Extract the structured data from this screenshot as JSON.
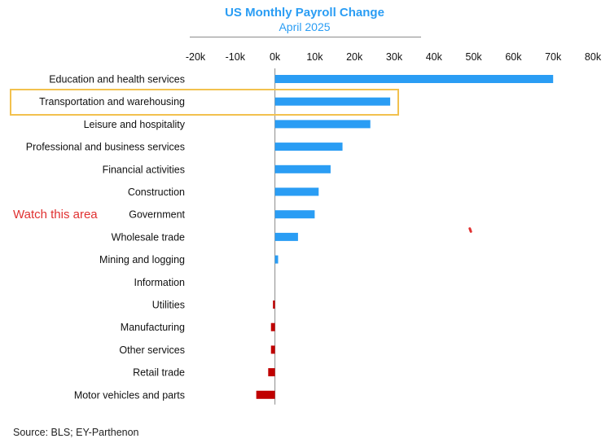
{
  "chart_data": {
    "type": "bar",
    "orientation": "horizontal",
    "title": "US Monthly Payroll Change",
    "subtitle": "April 2025",
    "categories": [
      "Education and health services",
      "Transportation and warehousing",
      "Leisure and hospitality",
      "Professional and business services",
      "Financial activities",
      "Construction",
      "Government",
      "Wholesale trade",
      "Mining and logging",
      "Information",
      "Utilities",
      "Manufacturing",
      "Other services",
      "Retail trade",
      "Motor vehicles and parts"
    ],
    "values": [
      70000,
      29000,
      24000,
      17000,
      14000,
      11000,
      10000,
      5800,
      800,
      0,
      -500,
      -1000,
      -1000,
      -1700,
      -4700
    ],
    "xlim": [
      -20000,
      80000
    ],
    "xticks": [
      -20000,
      -10000,
      0,
      10000,
      20000,
      30000,
      40000,
      50000,
      60000,
      70000,
      80000
    ],
    "tick_labels": [
      "-20k",
      "-10k",
      "0k",
      "10k",
      "20k",
      "30k",
      "40k",
      "50k",
      "60k",
      "70k",
      "80k"
    ],
    "positive_color": "#2a9df4",
    "negative_color": "#c00000",
    "grid": false,
    "legend": "none",
    "highlighted_category": "Transportation and warehousing",
    "highlight_color": "#f2c14e",
    "annotation": "Watch this area",
    "annotation_color": "#e03131"
  },
  "source": "Source: BLS; EY-Parthenon"
}
